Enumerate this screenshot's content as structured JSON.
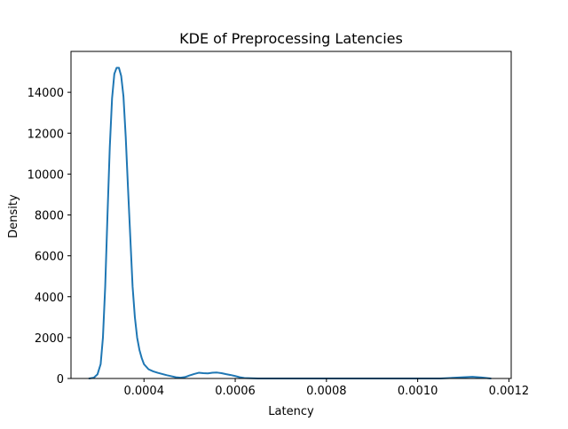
{
  "chart_data": {
    "type": "line",
    "title": "KDE of Preprocessing Latencies",
    "xlabel": "Latency",
    "ylabel": "Density",
    "xlim": [
      0.00024,
      0.001205
    ],
    "ylim": [
      0,
      16000
    ],
    "x_ticks": [
      0.0004,
      0.0006,
      0.0008,
      0.001,
      0.0012
    ],
    "x_tick_labels": [
      "0.0004",
      "0.0006",
      "0.0008",
      "0.0010",
      "0.0012"
    ],
    "y_ticks": [
      0,
      2000,
      4000,
      6000,
      8000,
      10000,
      12000,
      14000
    ],
    "y_tick_labels": [
      "0",
      "2000",
      "4000",
      "6000",
      "8000",
      "10000",
      "12000",
      "14000"
    ],
    "grid": false,
    "line_color": "#1f77b4",
    "series": [
      {
        "x": [
          0.00028,
          0.00029,
          0.000298,
          0.000305,
          0.00031,
          0.000315,
          0.00032,
          0.000325,
          0.00033,
          0.000335,
          0.00034,
          0.000345,
          0.00035,
          0.000355,
          0.00036,
          0.000365,
          0.00037,
          0.000375,
          0.00038,
          0.000385,
          0.00039,
          0.000395,
          0.0004,
          0.00041,
          0.00042,
          0.00043,
          0.00044,
          0.00045,
          0.00046,
          0.00047,
          0.00048,
          0.00049,
          0.0005,
          0.00051,
          0.00052,
          0.00053,
          0.00054,
          0.00055,
          0.00056,
          0.00057,
          0.00058,
          0.00059,
          0.0006,
          0.00061,
          0.00062,
          0.00065,
          0.0007,
          0.0008,
          0.0009,
          0.00105,
          0.0011,
          0.00112,
          0.00114,
          0.00116
        ],
        "y": [
          0,
          40,
          200,
          700,
          2000,
          4500,
          8000,
          11300,
          13700,
          14900,
          15200,
          15200,
          14800,
          13800,
          11800,
          9300,
          6900,
          4500,
          3000,
          2000,
          1400,
          1000,
          700,
          450,
          350,
          280,
          220,
          160,
          110,
          60,
          40,
          70,
          150,
          220,
          280,
          260,
          250,
          280,
          290,
          260,
          210,
          170,
          120,
          60,
          20,
          0,
          0,
          0,
          0,
          0,
          60,
          80,
          50,
          0
        ]
      }
    ]
  }
}
